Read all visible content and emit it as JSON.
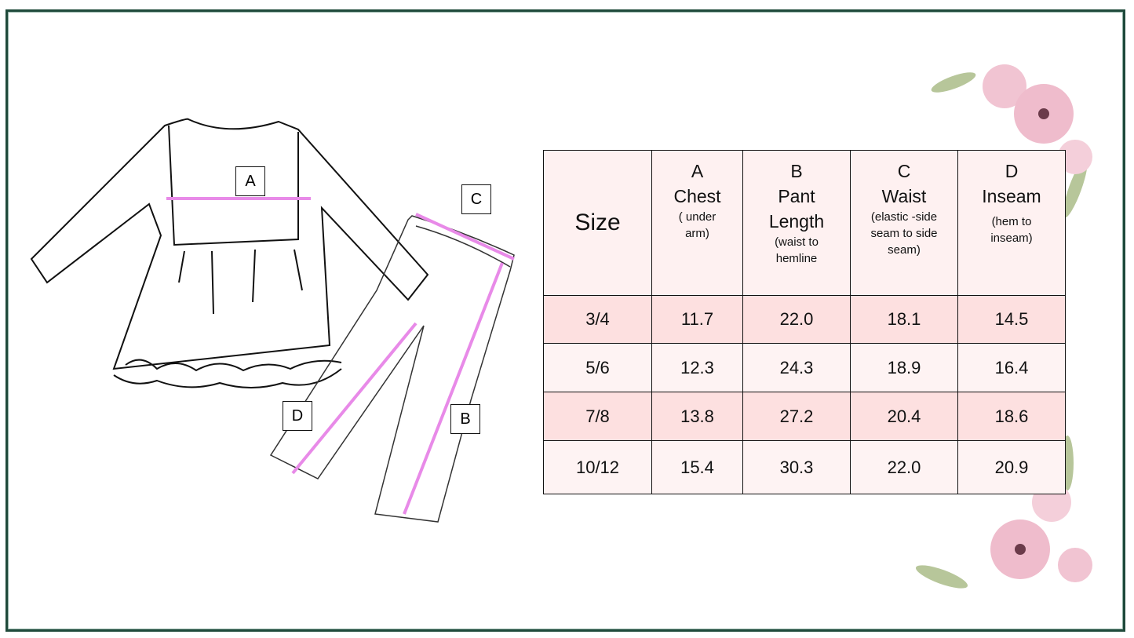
{
  "labels": {
    "a": "A",
    "b": "B",
    "c": "C",
    "d": "D"
  },
  "table": {
    "headers": [
      {
        "main": "Size"
      },
      {
        "letter": "A",
        "name": "Chest",
        "note": "( under arm)"
      },
      {
        "letter": "B",
        "name": "Pant Length",
        "note": "(waist to hemline"
      },
      {
        "letter": "C",
        "name": "Waist",
        "note": "(elastic -side seam to side seam)"
      },
      {
        "letter": "D",
        "name": "Inseam",
        "note": "(hem to inseam)"
      }
    ],
    "rows": [
      [
        "3/4",
        "11.7",
        "22.0",
        "18.1",
        "14.5"
      ],
      [
        "5/6",
        "12.3",
        "24.3",
        "18.9",
        "16.4"
      ],
      [
        "7/8",
        "13.8",
        "27.2",
        "20.4",
        "18.6"
      ],
      [
        "10/12",
        "15.4",
        "30.3",
        "22.0",
        "20.9"
      ]
    ]
  },
  "colors": {
    "frame": "#1f4a3b",
    "arrow": "#e88ae8",
    "row_dark": "#fde0e0",
    "row_light": "#fef3f3"
  }
}
